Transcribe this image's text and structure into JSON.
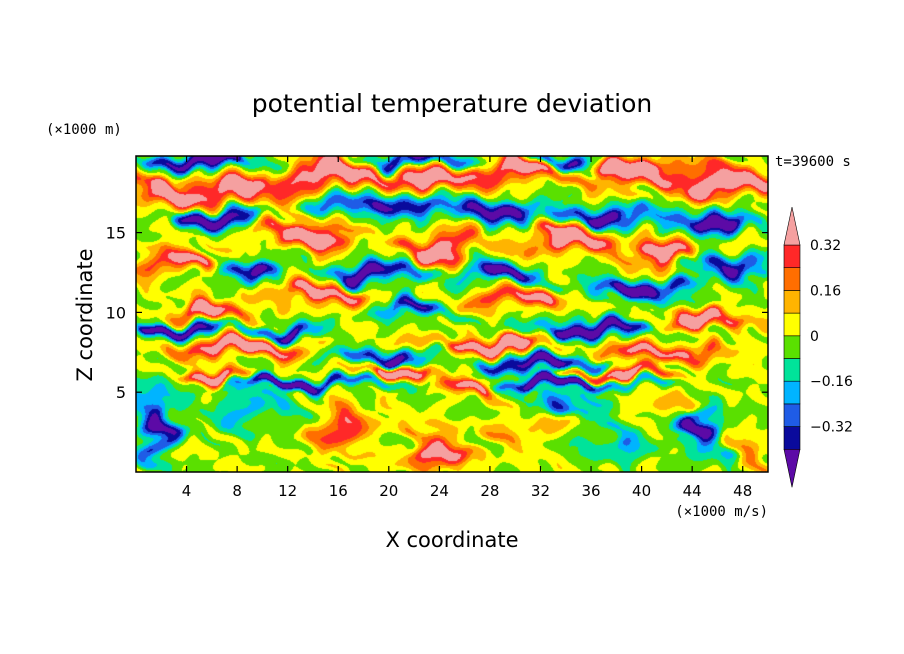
{
  "chart_data": {
    "type": "heatmap",
    "title": "potential temperature deviation",
    "xlabel": "X coordinate",
    "ylabel": "Z coordinate",
    "x_unit": "(×1000 m/s)",
    "y_unit": "(×1000 m)",
    "time_label": "t=39600 s",
    "xlim": [
      0,
      50
    ],
    "ylim": [
      0,
      19.8
    ],
    "x_ticks": [
      4,
      8,
      12,
      16,
      20,
      24,
      28,
      32,
      36,
      40,
      44,
      48
    ],
    "y_ticks": [
      5,
      10,
      15
    ],
    "colorbar": {
      "levels": [
        -0.4,
        -0.32,
        -0.24,
        -0.16,
        -0.08,
        0,
        0.08,
        0.16,
        0.24,
        0.32,
        0.4
      ],
      "tick_labels": [
        "0.32",
        "0.16",
        "0",
        "−0.16",
        "−0.32"
      ],
      "tick_values": [
        0.32,
        0.16,
        0,
        -0.16,
        -0.32
      ],
      "colors": [
        "#5c0aa6",
        "#0a0a9c",
        "#1f5ce6",
        "#00b4ff",
        "#00e39a",
        "#5ae000",
        "#ffff00",
        "#ffb400",
        "#ff6e00",
        "#ff2828",
        "#f5a0a0"
      ],
      "extend": "both"
    },
    "features": [
      {
        "x": 2.0,
        "y": 17.5,
        "sx": 3.0,
        "sy": 0.9,
        "v": 0.5
      },
      {
        "x": 9.0,
        "y": 17.6,
        "sx": 3.5,
        "sy": 0.8,
        "v": 0.5
      },
      {
        "x": 16.0,
        "y": 18.8,
        "sx": 4.0,
        "sy": 0.9,
        "v": 0.5
      },
      {
        "x": 24.0,
        "y": 18.2,
        "sx": 3.0,
        "sy": 0.7,
        "v": 0.5
      },
      {
        "x": 30.0,
        "y": 19.0,
        "sx": 3.0,
        "sy": 0.7,
        "v": 0.5
      },
      {
        "x": 40.0,
        "y": 18.8,
        "sx": 4.5,
        "sy": 0.9,
        "v": 0.5
      },
      {
        "x": 47.0,
        "y": 18.0,
        "sx": 3.0,
        "sy": 0.8,
        "v": 0.5
      },
      {
        "x": 5.0,
        "y": 19.5,
        "sx": 4.0,
        "sy": 0.5,
        "v": -0.5
      },
      {
        "x": 22.0,
        "y": 19.6,
        "sx": 3.0,
        "sy": 0.5,
        "v": -0.5
      },
      {
        "x": 35.0,
        "y": 19.5,
        "sx": 3.0,
        "sy": 0.5,
        "v": -0.5
      },
      {
        "x": 6.0,
        "y": 16.0,
        "sx": 3.0,
        "sy": 0.6,
        "v": -0.5
      },
      {
        "x": 19.0,
        "y": 16.8,
        "sx": 3.5,
        "sy": 0.7,
        "v": -0.5
      },
      {
        "x": 28.0,
        "y": 16.5,
        "sx": 4.0,
        "sy": 0.7,
        "v": -0.5
      },
      {
        "x": 37.0,
        "y": 16.0,
        "sx": 3.0,
        "sy": 0.6,
        "v": -0.5
      },
      {
        "x": 45.0,
        "y": 15.8,
        "sx": 3.5,
        "sy": 0.7,
        "v": -0.5
      },
      {
        "x": 13.0,
        "y": 15.0,
        "sx": 3.5,
        "sy": 0.8,
        "v": 0.5
      },
      {
        "x": 24.0,
        "y": 14.0,
        "sx": 3.0,
        "sy": 0.8,
        "v": 0.5
      },
      {
        "x": 34.0,
        "y": 14.6,
        "sx": 3.5,
        "sy": 0.8,
        "v": 0.5
      },
      {
        "x": 42.0,
        "y": 13.6,
        "sx": 3.0,
        "sy": 0.7,
        "v": 0.5
      },
      {
        "x": 3.0,
        "y": 13.2,
        "sx": 2.5,
        "sy": 0.7,
        "v": 0.4
      },
      {
        "x": 9.0,
        "y": 12.8,
        "sx": 2.5,
        "sy": 0.6,
        "v": -0.5
      },
      {
        "x": 19.0,
        "y": 12.5,
        "sx": 3.0,
        "sy": 0.6,
        "v": -0.5
      },
      {
        "x": 29.0,
        "y": 12.5,
        "sx": 3.0,
        "sy": 0.6,
        "v": -0.5
      },
      {
        "x": 47.0,
        "y": 13.0,
        "sx": 3.0,
        "sy": 0.7,
        "v": -0.5
      },
      {
        "x": 14.0,
        "y": 11.2,
        "sx": 3.0,
        "sy": 0.6,
        "v": 0.5
      },
      {
        "x": 30.0,
        "y": 11.0,
        "sx": 3.0,
        "sy": 0.6,
        "v": 0.4
      },
      {
        "x": 40.0,
        "y": 11.5,
        "sx": 3.5,
        "sy": 0.6,
        "v": -0.5
      },
      {
        "x": 6.0,
        "y": 10.0,
        "sx": 3.0,
        "sy": 0.5,
        "v": 0.5
      },
      {
        "x": 22.0,
        "y": 10.2,
        "sx": 3.0,
        "sy": 0.5,
        "v": -0.4
      },
      {
        "x": 45.0,
        "y": 9.5,
        "sx": 4.0,
        "sy": 0.5,
        "v": 0.5
      },
      {
        "x": 3.0,
        "y": 9.0,
        "sx": 3.0,
        "sy": 0.4,
        "v": -0.5
      },
      {
        "x": 12.0,
        "y": 8.8,
        "sx": 3.0,
        "sy": 0.4,
        "v": -0.5
      },
      {
        "x": 36.0,
        "y": 9.0,
        "sx": 4.0,
        "sy": 0.5,
        "v": -0.5
      },
      {
        "x": 8.0,
        "y": 7.8,
        "sx": 4.0,
        "sy": 0.5,
        "v": 0.5
      },
      {
        "x": 28.0,
        "y": 8.0,
        "sx": 4.0,
        "sy": 0.5,
        "v": 0.5
      },
      {
        "x": 20.0,
        "y": 7.2,
        "sx": 4.0,
        "sy": 0.5,
        "v": -0.5
      },
      {
        "x": 32.0,
        "y": 6.8,
        "sx": 4.0,
        "sy": 0.5,
        "v": -0.5
      },
      {
        "x": 42.0,
        "y": 7.5,
        "sx": 4.0,
        "sy": 0.5,
        "v": 0.4
      },
      {
        "x": 6.0,
        "y": 6.1,
        "sx": 3.0,
        "sy": 0.4,
        "v": 0.5
      },
      {
        "x": 20.0,
        "y": 6.5,
        "sx": 3.0,
        "sy": 0.45,
        "v": 0.5
      },
      {
        "x": 38.0,
        "y": 6.2,
        "sx": 4.0,
        "sy": 0.4,
        "v": 0.5
      },
      {
        "x": 26.0,
        "y": 5.3,
        "sx": 2.0,
        "sy": 0.6,
        "v": 0.45
      },
      {
        "x": 13.0,
        "y": 5.6,
        "sx": 6.0,
        "sy": 0.35,
        "v": -0.5
      },
      {
        "x": 34.0,
        "y": 5.6,
        "sx": 6.0,
        "sy": 0.35,
        "v": -0.5
      },
      {
        "x": 1.5,
        "y": 3.0,
        "sx": 1.6,
        "sy": 2.0,
        "v": -0.45
      },
      {
        "x": 9.0,
        "y": 4.0,
        "sx": 3.0,
        "sy": 1.2,
        "v": -0.2
      },
      {
        "x": 16.0,
        "y": 3.0,
        "sx": 1.5,
        "sy": 1.6,
        "v": 0.35
      },
      {
        "x": 23.5,
        "y": 1.5,
        "sx": 1.8,
        "sy": 1.2,
        "v": 0.4
      },
      {
        "x": 21.0,
        "y": 3.0,
        "sx": 2.5,
        "sy": 1.6,
        "v": 0.05
      },
      {
        "x": 30.5,
        "y": 2.5,
        "sx": 2.0,
        "sy": 1.5,
        "v": 0.15
      },
      {
        "x": 34.0,
        "y": 4.2,
        "sx": 3.0,
        "sy": 0.8,
        "v": -0.3
      },
      {
        "x": 38.0,
        "y": 2.0,
        "sx": 2.0,
        "sy": 1.5,
        "v": -0.2
      },
      {
        "x": 45.0,
        "y": 2.5,
        "sx": 1.6,
        "sy": 1.6,
        "v": -0.45
      },
      {
        "x": 48.5,
        "y": 1.5,
        "sx": 1.5,
        "sy": 1.0,
        "v": 0.2
      },
      {
        "x": 42.0,
        "y": 4.0,
        "sx": 2.5,
        "sy": 1.0,
        "v": 0.1
      }
    ]
  }
}
